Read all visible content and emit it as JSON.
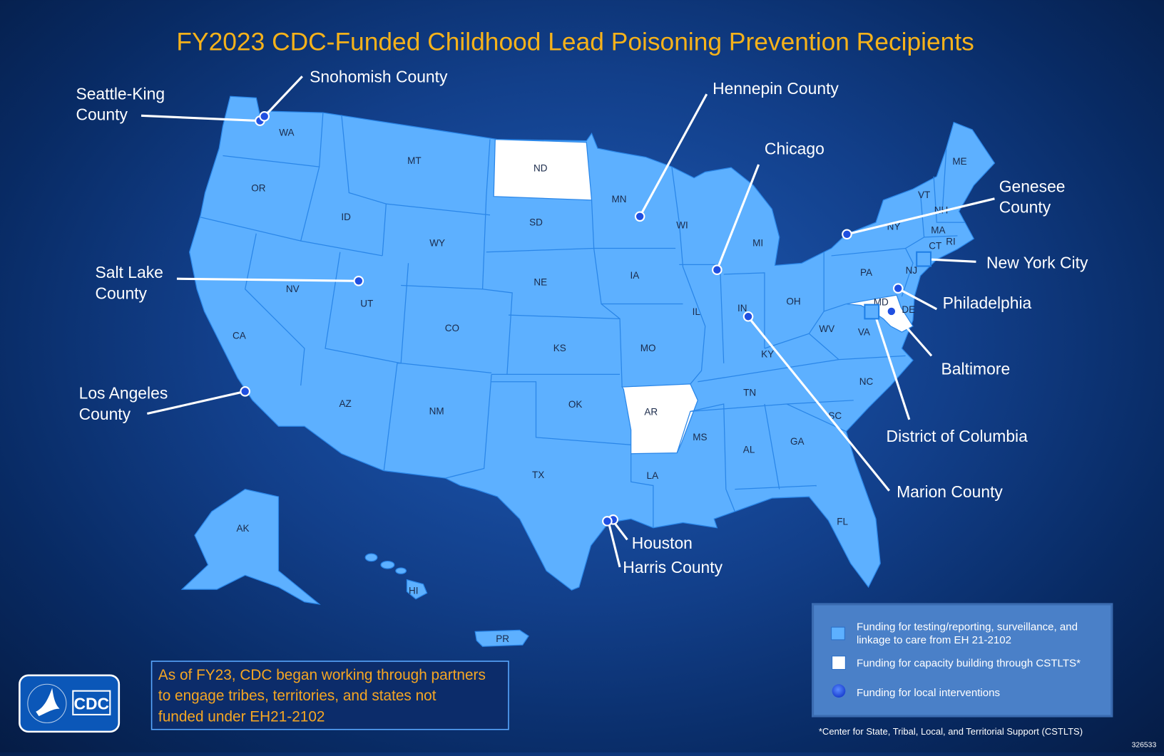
{
  "title": "FY2023 CDC-Funded Childhood Lead Poisoning Prevention Recipients",
  "colors": {
    "title": "#f6b21a",
    "funded_state": "#5db0ff",
    "capacity_state": "#ffffff",
    "local_intervention_dot": "#1f4fe0",
    "note_text": "#f5a623",
    "legend_bg": "#4a80c8"
  },
  "states": [
    "WA",
    "OR",
    "CA",
    "ID",
    "NV",
    "MT",
    "WY",
    "UT",
    "AZ",
    "CO",
    "NM",
    "ND",
    "SD",
    "NE",
    "KS",
    "OK",
    "TX",
    "MN",
    "IA",
    "MO",
    "AR",
    "LA",
    "WI",
    "IL",
    "MS",
    "MI",
    "IN",
    "KY",
    "TN",
    "AL",
    "GA",
    "FL",
    "OH",
    "WV",
    "VA",
    "NC",
    "SC",
    "PA",
    "NY",
    "VT",
    "NH",
    "ME",
    "MA",
    "CT",
    "RI",
    "NJ",
    "MD",
    "DE",
    "AK",
    "HI",
    "PR"
  ],
  "capacity_building_states": [
    "ND",
    "AR",
    "MD"
  ],
  "recipients": [
    {
      "label": "Seattle-King\nCounty",
      "line1": "Seattle-King",
      "line2": "County",
      "marker": "dot"
    },
    {
      "label": "Snohomish County",
      "marker": "dot"
    },
    {
      "label": "Hennepin County",
      "marker": "dot"
    },
    {
      "label": "Chicago",
      "marker": "dot"
    },
    {
      "line1": "Genesee",
      "line2": "County",
      "marker": "dot"
    },
    {
      "label": "New York City",
      "marker": "square"
    },
    {
      "label": "Philadelphia",
      "marker": "dot"
    },
    {
      "label": "Baltimore",
      "marker": "dot"
    },
    {
      "label": "District of Columbia",
      "marker": "square"
    },
    {
      "label": "Marion County",
      "marker": "dot"
    },
    {
      "line1": "Salt Lake",
      "line2": "County",
      "marker": "dot"
    },
    {
      "line1": "Los Angeles",
      "line2": "County",
      "marker": "dot"
    },
    {
      "label": "Houston",
      "marker": "dot"
    },
    {
      "label": "Harris County",
      "marker": "dot"
    }
  ],
  "note": {
    "line1": "As of FY23, CDC began working through partners",
    "line2": "to engage tribes, territories, and states not",
    "line3": "funded under EH21-2102"
  },
  "legend": {
    "items": [
      {
        "line1": "Funding for testing/reporting, surveillance, and",
        "line2": "linkage to care from EH 21-2102",
        "swatch": "light-blue-square"
      },
      {
        "line1": "Funding for capacity building through  CSTLTS*",
        "swatch": "white-square"
      },
      {
        "line1": "Funding for local interventions",
        "swatch": "blue-dot"
      }
    ],
    "footnote": "*Center for State, Tribal, Local, and Territorial  Support (CSTLTS)"
  },
  "logo": {
    "text": "CDC",
    "icon": "hhs-eagle-icon"
  },
  "image_id": "326533"
}
